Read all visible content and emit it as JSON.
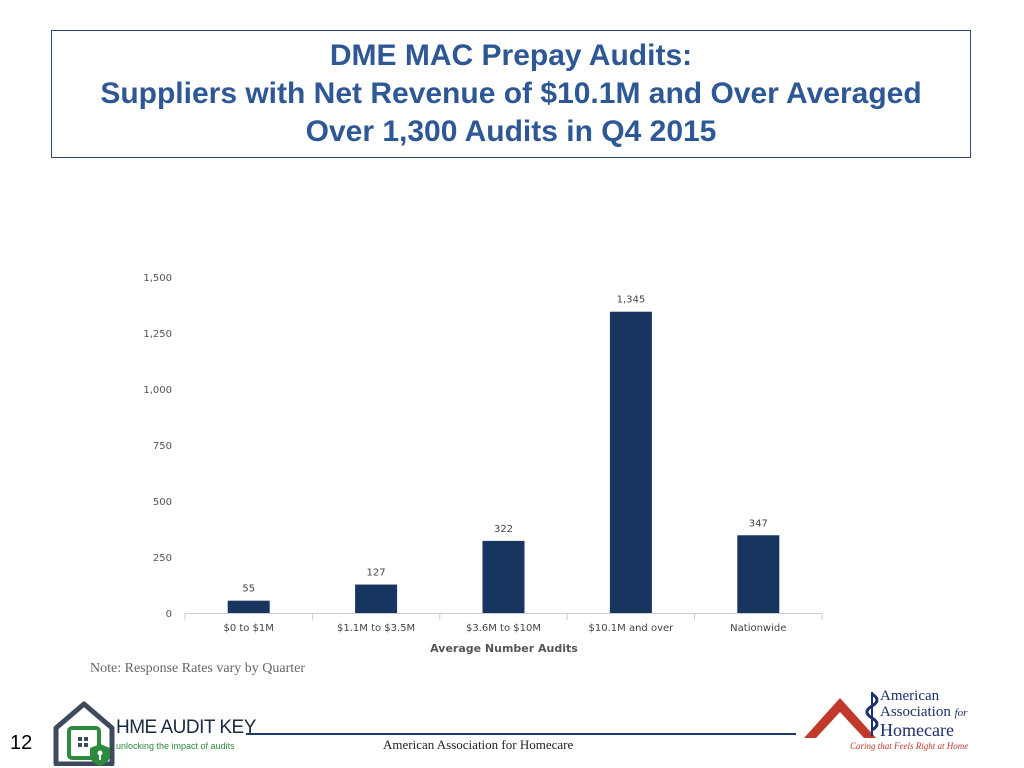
{
  "title": {
    "line1": "DME MAC Prepay Audits:",
    "line2": "Suppliers with Net Revenue of $10.1M and Over Averaged",
    "line3": "Over 1,300 Audits in Q4 2015"
  },
  "chart_data": {
    "type": "bar",
    "categories": [
      "$0 to $1M",
      "$1.1M to $3.5M",
      "$3.6M to $10M",
      "$10.1M and over",
      "Nationwide"
    ],
    "values": [
      55,
      127,
      322,
      1345,
      347
    ],
    "value_labels": [
      "55",
      "127",
      "322",
      "1,345",
      "347"
    ],
    "xlabel": "Average Number Audits",
    "ylabel": "",
    "ylim": [
      0,
      1500
    ],
    "yticks": [
      0,
      250,
      500,
      750,
      1000,
      1250,
      1500
    ],
    "ytick_labels": [
      "0",
      "250",
      "500",
      "750",
      "1,000",
      "1,250",
      "1,500"
    ],
    "grid": false,
    "bar_color": "#17355f"
  },
  "note": "Note: Response Rates vary by Quarter",
  "footer": {
    "page_number": "12",
    "org_text": "American Association for Homecare"
  },
  "logos": {
    "left": {
      "name": "HME AUDIT KEY",
      "tagline": "unlocking the impact of audits",
      "icon": "house-lock-icon"
    },
    "right": {
      "line1": "American",
      "line2": "Association",
      "line2_suffix": "for",
      "line3": "Homecare",
      "tagline": "Caring that Feels Right at Home",
      "icon": "house-caduceus-icon"
    }
  },
  "colors": {
    "title": "#2e5895",
    "bar": "#17355f",
    "footer_rule": "#1f3a68",
    "aahc_red": "#c0392b",
    "hme_green": "#2e8a3e"
  }
}
